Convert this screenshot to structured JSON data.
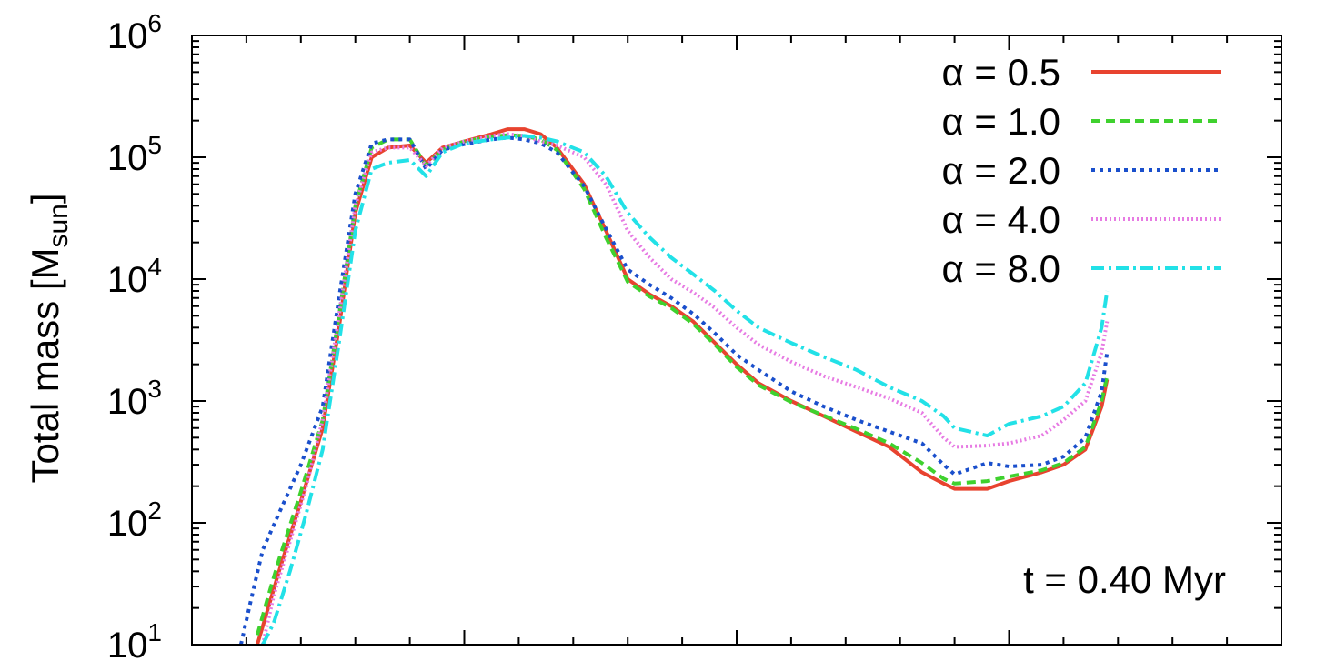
{
  "chart_data": {
    "type": "line",
    "title": "",
    "xlabel": "",
    "ylabel": "Total mass [M",
    "ylabel_sub": "sun",
    "ylabel_end": "]",
    "yscale": "log",
    "ylim": [
      10,
      1000000
    ],
    "xlim": [
      0,
      200
    ],
    "y_ticks": [
      {
        "value": 10,
        "base": "10",
        "exp": "1"
      },
      {
        "value": 100,
        "base": "10",
        "exp": "2"
      },
      {
        "value": 1000,
        "base": "10",
        "exp": "3"
      },
      {
        "value": 10000,
        "base": "10",
        "exp": "4"
      },
      {
        "value": 100000,
        "base": "10",
        "exp": "5"
      },
      {
        "value": 1000000,
        "base": "10",
        "exp": "6"
      }
    ],
    "x_ticks": [
      0,
      10,
      20,
      30,
      40,
      50,
      60,
      70,
      80,
      90,
      100,
      110,
      120,
      130,
      140,
      150,
      160,
      170,
      180,
      190,
      200
    ],
    "x_tick_labels_shown": false,
    "grid": false,
    "legend_position": "top-right",
    "annotation": "t = 0.40 Myr",
    "series": [
      {
        "name": "α = 0.5",
        "color": "#e8432f",
        "dash": "solid",
        "points": [
          [
            12,
            10
          ],
          [
            14,
            20
          ],
          [
            16,
            40
          ],
          [
            20,
            150
          ],
          [
            24,
            600
          ],
          [
            27,
            4000
          ],
          [
            30,
            35000
          ],
          [
            33,
            100000
          ],
          [
            36,
            120000
          ],
          [
            40,
            125000
          ],
          [
            43,
            90000
          ],
          [
            46,
            120000
          ],
          [
            50,
            135000
          ],
          [
            55,
            155000
          ],
          [
            58,
            170000
          ],
          [
            61,
            170000
          ],
          [
            64,
            155000
          ],
          [
            67,
            120000
          ],
          [
            72,
            60000
          ],
          [
            76,
            25000
          ],
          [
            80,
            10000
          ],
          [
            84,
            7500
          ],
          [
            88,
            6000
          ],
          [
            92,
            4500
          ],
          [
            96,
            3000
          ],
          [
            100,
            2000
          ],
          [
            104,
            1400
          ],
          [
            110,
            1000
          ],
          [
            116,
            750
          ],
          [
            122,
            560
          ],
          [
            128,
            420
          ],
          [
            134,
            260
          ],
          [
            138,
            210
          ],
          [
            140,
            190
          ],
          [
            146,
            190
          ],
          [
            150,
            220
          ],
          [
            156,
            260
          ],
          [
            160,
            300
          ],
          [
            164,
            400
          ],
          [
            167,
            900
          ],
          [
            168,
            1500
          ]
        ]
      },
      {
        "name": "α = 1.0",
        "color": "#3fd12e",
        "dash": "10,6",
        "points": [
          [
            12,
            12
          ],
          [
            14,
            25
          ],
          [
            16,
            50
          ],
          [
            20,
            180
          ],
          [
            24,
            700
          ],
          [
            27,
            5000
          ],
          [
            30,
            40000
          ],
          [
            33,
            120000
          ],
          [
            36,
            140000
          ],
          [
            40,
            140000
          ],
          [
            43,
            85000
          ],
          [
            46,
            115000
          ],
          [
            50,
            135000
          ],
          [
            55,
            148000
          ],
          [
            58,
            152000
          ],
          [
            61,
            150000
          ],
          [
            64,
            140000
          ],
          [
            67,
            115000
          ],
          [
            72,
            55000
          ],
          [
            76,
            22000
          ],
          [
            80,
            9500
          ],
          [
            84,
            7200
          ],
          [
            88,
            5800
          ],
          [
            92,
            4300
          ],
          [
            96,
            2900
          ],
          [
            100,
            1900
          ],
          [
            104,
            1350
          ],
          [
            110,
            980
          ],
          [
            116,
            760
          ],
          [
            122,
            590
          ],
          [
            128,
            450
          ],
          [
            134,
            310
          ],
          [
            138,
            230
          ],
          [
            140,
            210
          ],
          [
            146,
            220
          ],
          [
            150,
            240
          ],
          [
            156,
            270
          ],
          [
            160,
            310
          ],
          [
            164,
            420
          ],
          [
            167,
            1000
          ],
          [
            168,
            1600
          ]
        ]
      },
      {
        "name": "α = 2.0",
        "color": "#1a4fcc",
        "dash": "4,5",
        "points": [
          [
            9,
            10
          ],
          [
            11,
            25
          ],
          [
            13,
            60
          ],
          [
            16,
            120
          ],
          [
            20,
            300
          ],
          [
            24,
            900
          ],
          [
            27,
            7000
          ],
          [
            30,
            50000
          ],
          [
            33,
            130000
          ],
          [
            36,
            140000
          ],
          [
            40,
            140000
          ],
          [
            43,
            80000
          ],
          [
            46,
            115000
          ],
          [
            50,
            128000
          ],
          [
            55,
            140000
          ],
          [
            58,
            145000
          ],
          [
            61,
            140000
          ],
          [
            64,
            130000
          ],
          [
            67,
            110000
          ],
          [
            72,
            58000
          ],
          [
            76,
            26000
          ],
          [
            80,
            12000
          ],
          [
            84,
            9000
          ],
          [
            88,
            7000
          ],
          [
            92,
            5200
          ],
          [
            96,
            3600
          ],
          [
            100,
            2400
          ],
          [
            104,
            1800
          ],
          [
            110,
            1200
          ],
          [
            116,
            900
          ],
          [
            122,
            700
          ],
          [
            128,
            560
          ],
          [
            134,
            450
          ],
          [
            138,
            300
          ],
          [
            140,
            250
          ],
          [
            146,
            310
          ],
          [
            150,
            290
          ],
          [
            156,
            300
          ],
          [
            160,
            350
          ],
          [
            164,
            500
          ],
          [
            167,
            1200
          ],
          [
            168,
            2500
          ]
        ]
      },
      {
        "name": "α = 4.0",
        "color": "#e77be3",
        "dash": "2,3",
        "points": [
          [
            13,
            10
          ],
          [
            15,
            25
          ],
          [
            18,
            70
          ],
          [
            21,
            200
          ],
          [
            24,
            700
          ],
          [
            27,
            5000
          ],
          [
            30,
            40000
          ],
          [
            33,
            110000
          ],
          [
            36,
            120000
          ],
          [
            40,
            120000
          ],
          [
            43,
            85000
          ],
          [
            46,
            120000
          ],
          [
            50,
            135000
          ],
          [
            55,
            150000
          ],
          [
            58,
            155000
          ],
          [
            61,
            150000
          ],
          [
            64,
            135000
          ],
          [
            67,
            125000
          ],
          [
            72,
            100000
          ],
          [
            76,
            60000
          ],
          [
            80,
            25000
          ],
          [
            84,
            15000
          ],
          [
            88,
            10000
          ],
          [
            92,
            7800
          ],
          [
            96,
            5800
          ],
          [
            100,
            4000
          ],
          [
            104,
            2900
          ],
          [
            110,
            2100
          ],
          [
            116,
            1600
          ],
          [
            122,
            1300
          ],
          [
            128,
            1050
          ],
          [
            134,
            800
          ],
          [
            138,
            500
          ],
          [
            140,
            420
          ],
          [
            146,
            430
          ],
          [
            150,
            450
          ],
          [
            156,
            520
          ],
          [
            160,
            700
          ],
          [
            164,
            1000
          ],
          [
            167,
            2500
          ],
          [
            168,
            4500
          ]
        ]
      },
      {
        "name": "α = 8.0",
        "color": "#22e1e7",
        "dash": "14,5,3,5",
        "points": [
          [
            13,
            10
          ],
          [
            15,
            15
          ],
          [
            18,
            40
          ],
          [
            21,
            120
          ],
          [
            24,
            400
          ],
          [
            27,
            3000
          ],
          [
            30,
            25000
          ],
          [
            33,
            80000
          ],
          [
            36,
            90000
          ],
          [
            40,
            95000
          ],
          [
            43,
            70000
          ],
          [
            46,
            110000
          ],
          [
            50,
            130000
          ],
          [
            55,
            140000
          ],
          [
            58,
            145000
          ],
          [
            61,
            150000
          ],
          [
            64,
            145000
          ],
          [
            67,
            135000
          ],
          [
            72,
            110000
          ],
          [
            76,
            70000
          ],
          [
            80,
            35000
          ],
          [
            84,
            22000
          ],
          [
            88,
            15000
          ],
          [
            92,
            11000
          ],
          [
            96,
            8000
          ],
          [
            100,
            5500
          ],
          [
            104,
            4000
          ],
          [
            110,
            3000
          ],
          [
            116,
            2300
          ],
          [
            122,
            1800
          ],
          [
            128,
            1300
          ],
          [
            134,
            1000
          ],
          [
            138,
            750
          ],
          [
            140,
            600
          ],
          [
            146,
            520
          ],
          [
            150,
            650
          ],
          [
            156,
            750
          ],
          [
            160,
            900
          ],
          [
            164,
            1400
          ],
          [
            167,
            4000
          ],
          [
            168,
            8000
          ]
        ]
      }
    ]
  }
}
